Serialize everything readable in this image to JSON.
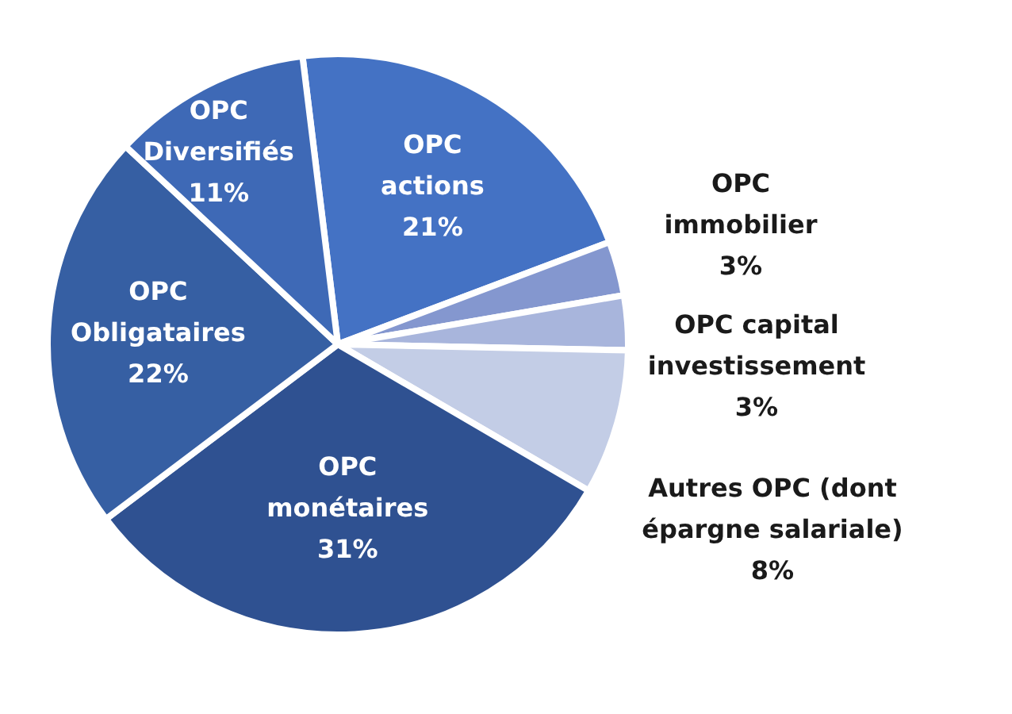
{
  "chart_data": {
    "type": "pie",
    "categories": [
      "OPC actions",
      "OPC immobilier",
      "OPC capital investissement",
      "Autres OPC (dont épargne salariale)",
      "OPC monétaires",
      "OPC Obligataires",
      "OPC Diversifiés"
    ],
    "values": [
      21,
      3,
      3,
      8,
      31,
      22,
      11
    ],
    "colors": [
      "#4472c4",
      "#8497cf",
      "#a8b5dc",
      "#c3cde6",
      "#2f5191",
      "#365fa3",
      "#3e69b6"
    ],
    "value_labels": [
      "21%",
      "3%",
      "3%",
      "8%",
      "31%",
      "22%",
      "11%"
    ]
  }
}
